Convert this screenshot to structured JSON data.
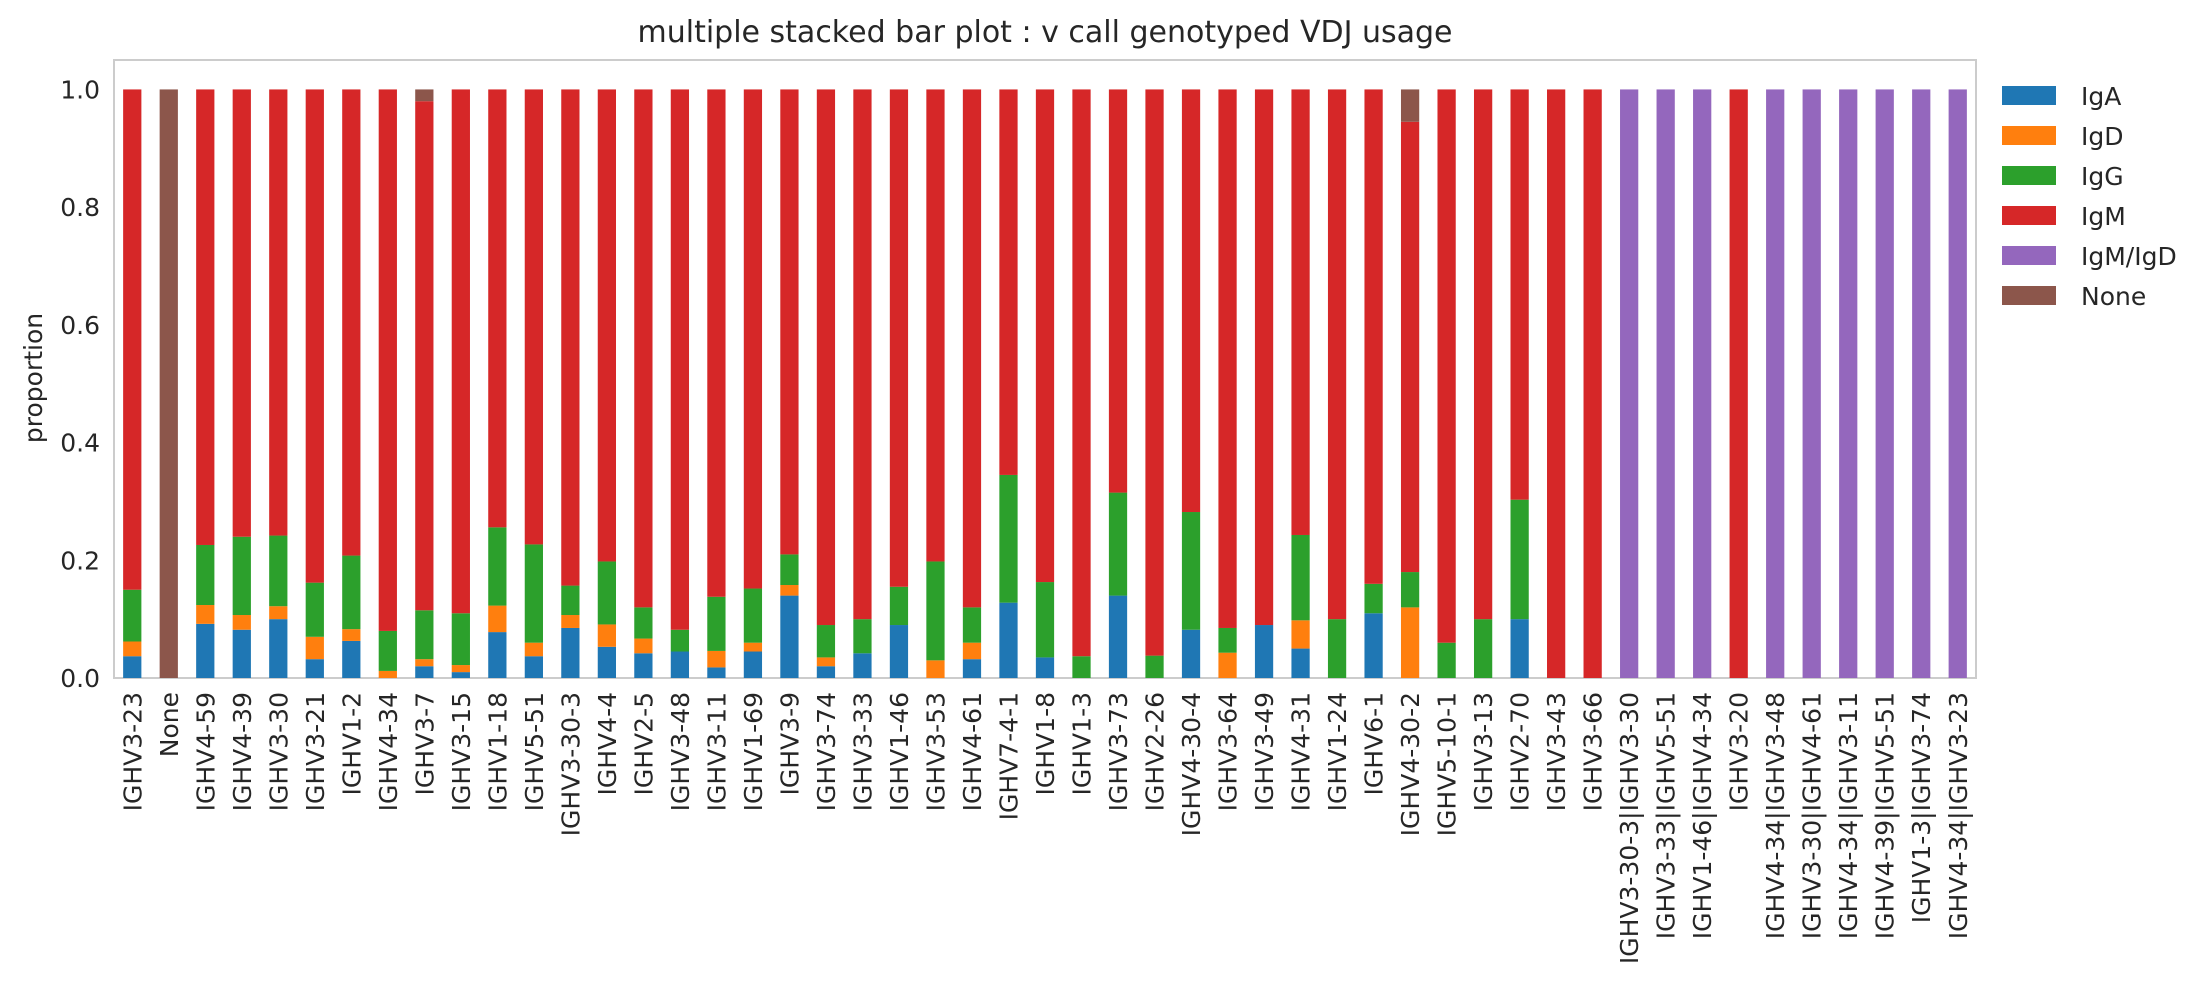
{
  "chart_data": {
    "type": "bar",
    "stacked": true,
    "title": "multiple stacked bar plot : v call genotyped VDJ usage",
    "xlabel": "",
    "ylabel": "proportion",
    "ylim": [
      0,
      1.05
    ],
    "yticks": [
      "0.0",
      "0.2",
      "0.4",
      "0.6",
      "0.8",
      "1.0"
    ],
    "grid": false,
    "legend_position": "outside-top-right",
    "categories": [
      "IGHV3-23",
      "None",
      "IGHV4-59",
      "IGHV4-39",
      "IGHV3-30",
      "IGHV3-21",
      "IGHV1-2",
      "IGHV4-34",
      "IGHV3-7",
      "IGHV3-15",
      "IGHV1-18",
      "IGHV5-51",
      "IGHV3-30-3",
      "IGHV4-4",
      "IGHV2-5",
      "IGHV3-48",
      "IGHV3-11",
      "IGHV1-69",
      "IGHV3-9",
      "IGHV3-74",
      "IGHV3-33",
      "IGHV1-46",
      "IGHV3-53",
      "IGHV4-61",
      "IGHV7-4-1",
      "IGHV1-8",
      "IGHV1-3",
      "IGHV3-73",
      "IGHV2-26",
      "IGHV4-30-4",
      "IGHV3-64",
      "IGHV3-49",
      "IGHV4-31",
      "IGHV1-24",
      "IGHV6-1",
      "IGHV4-30-2",
      "IGHV5-10-1",
      "IGHV3-13",
      "IGHV2-70",
      "IGHV3-43",
      "IGHV3-66",
      "IGHV3-30-3|IGHV3-30",
      "IGHV3-33|IGHV5-51",
      "IGHV1-46|IGHV4-34",
      "IGHV3-20",
      "IGHV4-34|IGHV3-48",
      "IGHV3-30|IGHV4-61",
      "IGHV4-34|IGHV3-11",
      "IGHV4-39|IGHV5-51",
      "IGHV1-3|IGHV3-74",
      "IGHV4-34|IGHV3-23"
    ],
    "series": [
      {
        "name": "IgA",
        "color": "#1f77b4",
        "values": [
          0.037,
          0,
          0.092,
          0.082,
          0.1,
          0.032,
          0.063,
          0,
          0.02,
          0.01,
          0.078,
          0.037,
          0.085,
          0.053,
          0.042,
          0.045,
          0.018,
          0.045,
          0.14,
          0.02,
          0.042,
          0.09,
          0,
          0.032,
          0.128,
          0.035,
          0,
          0.14,
          0,
          0.082,
          0,
          0.09,
          0.05,
          0,
          0.11,
          0,
          0,
          0,
          0.1,
          0,
          0,
          0,
          0,
          0,
          0,
          0,
          0,
          0,
          0,
          0,
          0
        ]
      },
      {
        "name": "IgD",
        "color": "#ff7f0e",
        "values": [
          0.025,
          0,
          0.032,
          0.025,
          0.022,
          0.038,
          0.02,
          0.012,
          0.012,
          0.012,
          0.045,
          0.023,
          0.022,
          0.038,
          0.025,
          0,
          0.028,
          0.015,
          0.018,
          0.015,
          0,
          0,
          0.03,
          0.028,
          0,
          0,
          0,
          0,
          0,
          0,
          0.043,
          0,
          0.048,
          0,
          0,
          0.12,
          0,
          0,
          0,
          0,
          0,
          0,
          0,
          0,
          0,
          0,
          0,
          0,
          0,
          0,
          0
        ]
      },
      {
        "name": "IgG",
        "color": "#2ca02c",
        "values": [
          0.088,
          0,
          0.102,
          0.133,
          0.12,
          0.092,
          0.125,
          0.068,
          0.083,
          0.088,
          0.133,
          0.167,
          0.05,
          0.107,
          0.053,
          0.037,
          0.092,
          0.092,
          0.052,
          0.055,
          0.058,
          0.065,
          0.168,
          0.06,
          0.217,
          0.128,
          0.037,
          0.175,
          0.038,
          0.2,
          0.042,
          0,
          0.145,
          0.1,
          0.05,
          0.06,
          0.06,
          0.1,
          0.203,
          0,
          0,
          0,
          0,
          0,
          0,
          0,
          0,
          0,
          0,
          0,
          0
        ]
      },
      {
        "name": "IgM",
        "color": "#d62728",
        "values": [
          0.85,
          0,
          0.774,
          0.76,
          0.758,
          0.838,
          0.792,
          0.92,
          0.865,
          0.89,
          0.744,
          0.773,
          0.843,
          0.802,
          0.88,
          0.918,
          0.862,
          0.848,
          0.79,
          0.91,
          0.9,
          0.845,
          0.802,
          0.88,
          0.655,
          0.837,
          0.963,
          0.685,
          0.962,
          0.718,
          0.915,
          0.91,
          0.757,
          0.9,
          0.84,
          0.765,
          0.94,
          0.9,
          0.697,
          1.0,
          1.0,
          0,
          0,
          0,
          1.0,
          0,
          0,
          0,
          0,
          0,
          0
        ]
      },
      {
        "name": "IgM/IgD",
        "color": "#9467bd",
        "values": [
          0,
          0,
          0,
          0,
          0,
          0,
          0,
          0,
          0,
          0,
          0,
          0,
          0,
          0,
          0,
          0,
          0,
          0,
          0,
          0,
          0,
          0,
          0,
          0,
          0,
          0,
          0,
          0,
          0,
          0,
          0,
          0,
          0,
          0,
          0,
          0,
          0,
          0,
          0,
          0,
          0,
          1.0,
          1.0,
          1.0,
          0,
          1.0,
          1.0,
          1.0,
          1.0,
          1.0,
          1.0
        ]
      },
      {
        "name": "None",
        "color": "#8c564b",
        "values": [
          0,
          1.0,
          0,
          0,
          0,
          0,
          0,
          0,
          0.02,
          0,
          0,
          0,
          0,
          0,
          0,
          0,
          0,
          0,
          0,
          0,
          0,
          0,
          0,
          0,
          0,
          0,
          0,
          0,
          0,
          0,
          0,
          0,
          0,
          0,
          0,
          0.055,
          0,
          0,
          0,
          0,
          0,
          0,
          0,
          0,
          0,
          0,
          0,
          0,
          0,
          0,
          0
        ]
      }
    ]
  }
}
